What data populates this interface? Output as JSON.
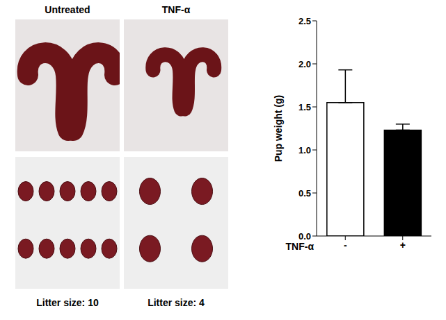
{
  "panels": [
    {
      "title": "Untreated",
      "litter_label": "Litter size: 10",
      "litter_size": 10
    },
    {
      "title": "TNF-α",
      "litter_label": "Litter size: 4",
      "litter_size": 4
    }
  ],
  "chart_data": {
    "type": "bar",
    "categories": [
      "-",
      "+"
    ],
    "values": [
      1.55,
      1.23
    ],
    "errors": [
      0.38,
      0.07
    ],
    "colors": [
      "#ffffff",
      "#000000"
    ],
    "x_label": "TNF-α",
    "y_label": "Pup weight (g)",
    "ylim": [
      0,
      2.5
    ],
    "yticks": [
      {
        "value": 0,
        "label": "0.0"
      },
      {
        "value": 0.5,
        "label": "0.5"
      },
      {
        "value": 1,
        "label": "1.0"
      },
      {
        "value": 1.5,
        "label": "1.5"
      },
      {
        "value": 2,
        "label": "2.0"
      },
      {
        "value": 2.5,
        "label": "2.5"
      }
    ],
    "grid": false
  }
}
